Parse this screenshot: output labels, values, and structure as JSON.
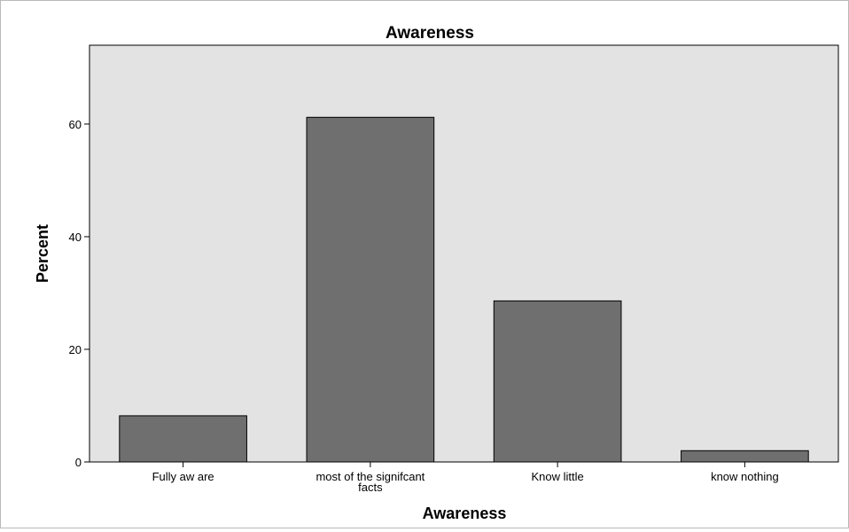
{
  "chart_data": {
    "type": "bar",
    "title": "Awareness",
    "xlabel": "Awareness",
    "ylabel": "Percent",
    "categories": [
      [
        "Fully aw are"
      ],
      [
        "most of the signifcant",
        "facts"
      ],
      [
        "Know  little"
      ],
      [
        "know  nothing"
      ]
    ],
    "values": [
      8.2,
      61.2,
      28.6,
      2.0
    ],
    "ylim": [
      0,
      74
    ],
    "yticks": [
      0,
      20,
      40,
      60
    ],
    "grid": false,
    "legend": "none",
    "colors": {
      "plot_background": "#e3e3e3",
      "bar_fill": "#6f6f6f",
      "bar_stroke": "#000000",
      "axis": "#000000"
    }
  }
}
